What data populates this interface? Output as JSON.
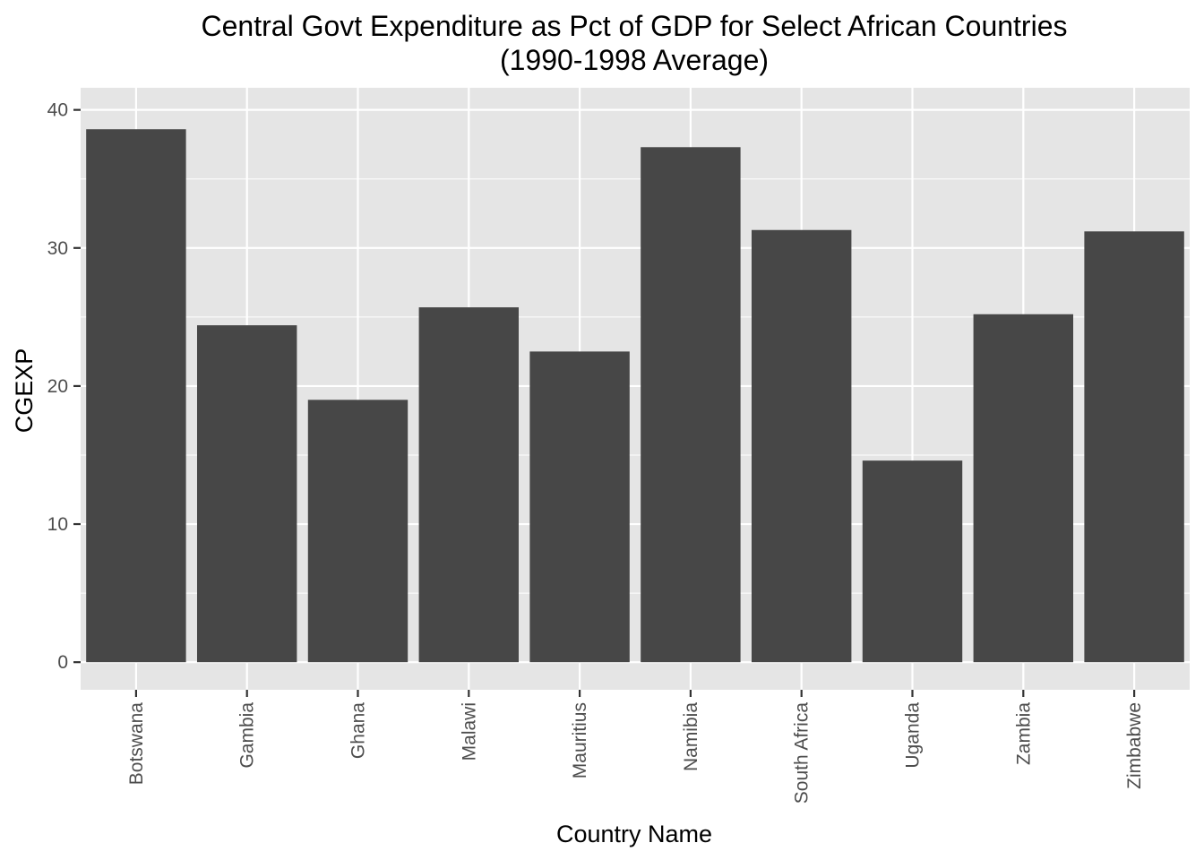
{
  "chart_data": {
    "type": "bar",
    "title": [
      "Central Govt Expenditure as Pct of GDP for Select African Countries",
      "(1990-1998 Average)"
    ],
    "xlabel": "Country Name",
    "ylabel": "CGEXP",
    "categories": [
      "Botswana",
      "Gambia",
      "Ghana",
      "Malawi",
      "Mauritius",
      "Namibia",
      "South Africa",
      "Uganda",
      "Zambia",
      "Zimbabwe"
    ],
    "values": [
      38.6,
      24.4,
      19.0,
      25.7,
      22.5,
      37.3,
      31.3,
      14.6,
      25.2,
      31.2
    ],
    "ylim": [
      -2,
      41.6
    ],
    "yticks": [
      0,
      10,
      20,
      30,
      40
    ],
    "grid": true,
    "colors": {
      "panel": "#e5e5e5",
      "bar": "#474747",
      "grid": "#ffffff",
      "tick": "#333333",
      "text": "#4d4d4d"
    }
  }
}
